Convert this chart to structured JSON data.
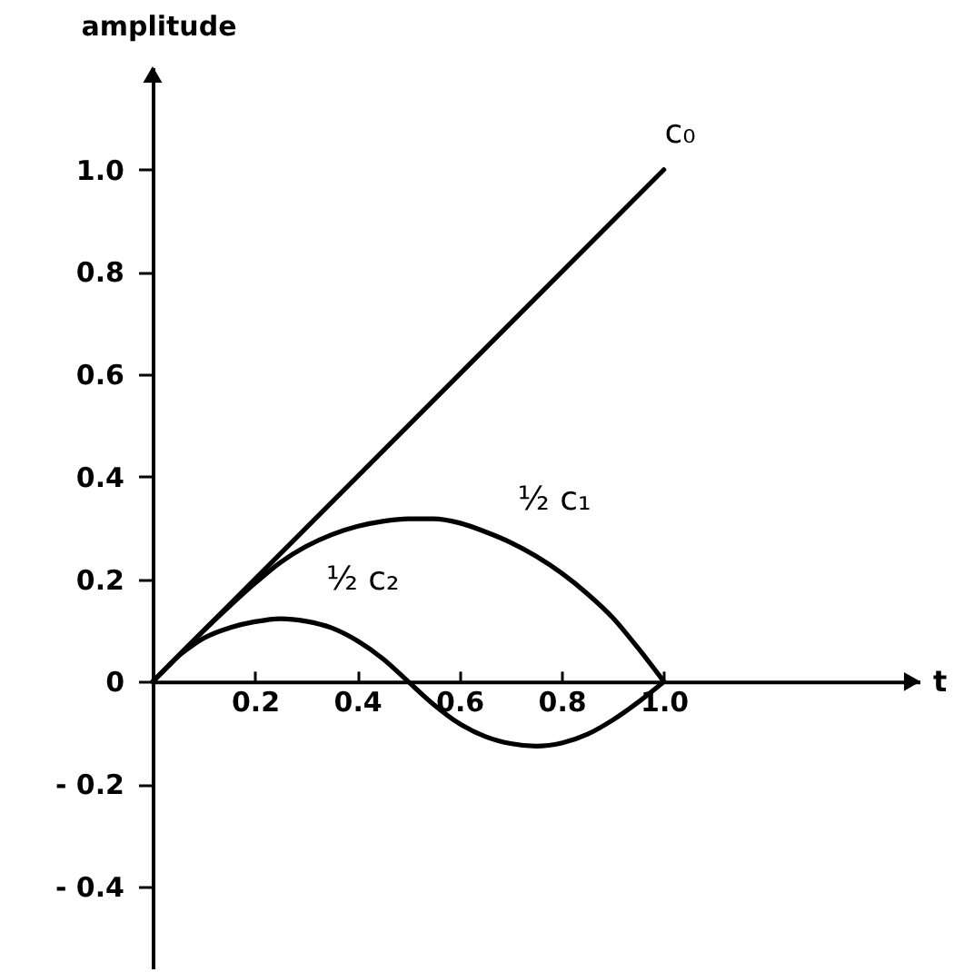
{
  "chart_data": {
    "type": "line",
    "xlabel": "t",
    "ylabel": "amplitude",
    "x": [
      0,
      0.05,
      0.1,
      0.15,
      0.2,
      0.25,
      0.3,
      0.35,
      0.4,
      0.45,
      0.5,
      0.55,
      0.6,
      0.65,
      0.7,
      0.75,
      0.8,
      0.85,
      0.9,
      0.95,
      1.0
    ],
    "series": [
      {
        "name": "c₀",
        "color": "#000000",
        "x": [
          0,
          1.0
        ],
        "values": [
          0,
          1.0
        ]
      },
      {
        "name": "½ c₁",
        "color": "#000000",
        "values": [
          0,
          0.05,
          0.1,
          0.147,
          0.192,
          0.233,
          0.264,
          0.287,
          0.303,
          0.313,
          0.318,
          0.318,
          0.31,
          0.293,
          0.272,
          0.245,
          0.212,
          0.172,
          0.125,
          0.065,
          0
        ]
      },
      {
        "name": "½ c₂",
        "color": "#000000",
        "values": [
          null,
          0.05,
          0.085,
          0.105,
          0.117,
          0.123,
          0.118,
          0.105,
          0.08,
          0.045,
          0,
          -0.045,
          -0.082,
          -0.107,
          -0.121,
          -0.126,
          -0.12,
          -0.103,
          -0.075,
          -0.04,
          0
        ]
      }
    ],
    "xlim": [
      0,
      1.5
    ],
    "ylim": [
      -0.56,
      1.2
    ],
    "xticks": [
      0.2,
      0.4,
      0.6,
      0.8,
      {
        "value": 1,
        "label": "1.0"
      }
    ],
    "yticks": [
      {
        "value": -0.4,
        "label": "- 0.4"
      },
      {
        "value": -0.2,
        "label": "- 0.2"
      },
      0,
      0.2,
      0.4,
      0.6,
      0.8,
      {
        "value": 1,
        "label": "1.0"
      }
    ],
    "line_style": "solid"
  }
}
